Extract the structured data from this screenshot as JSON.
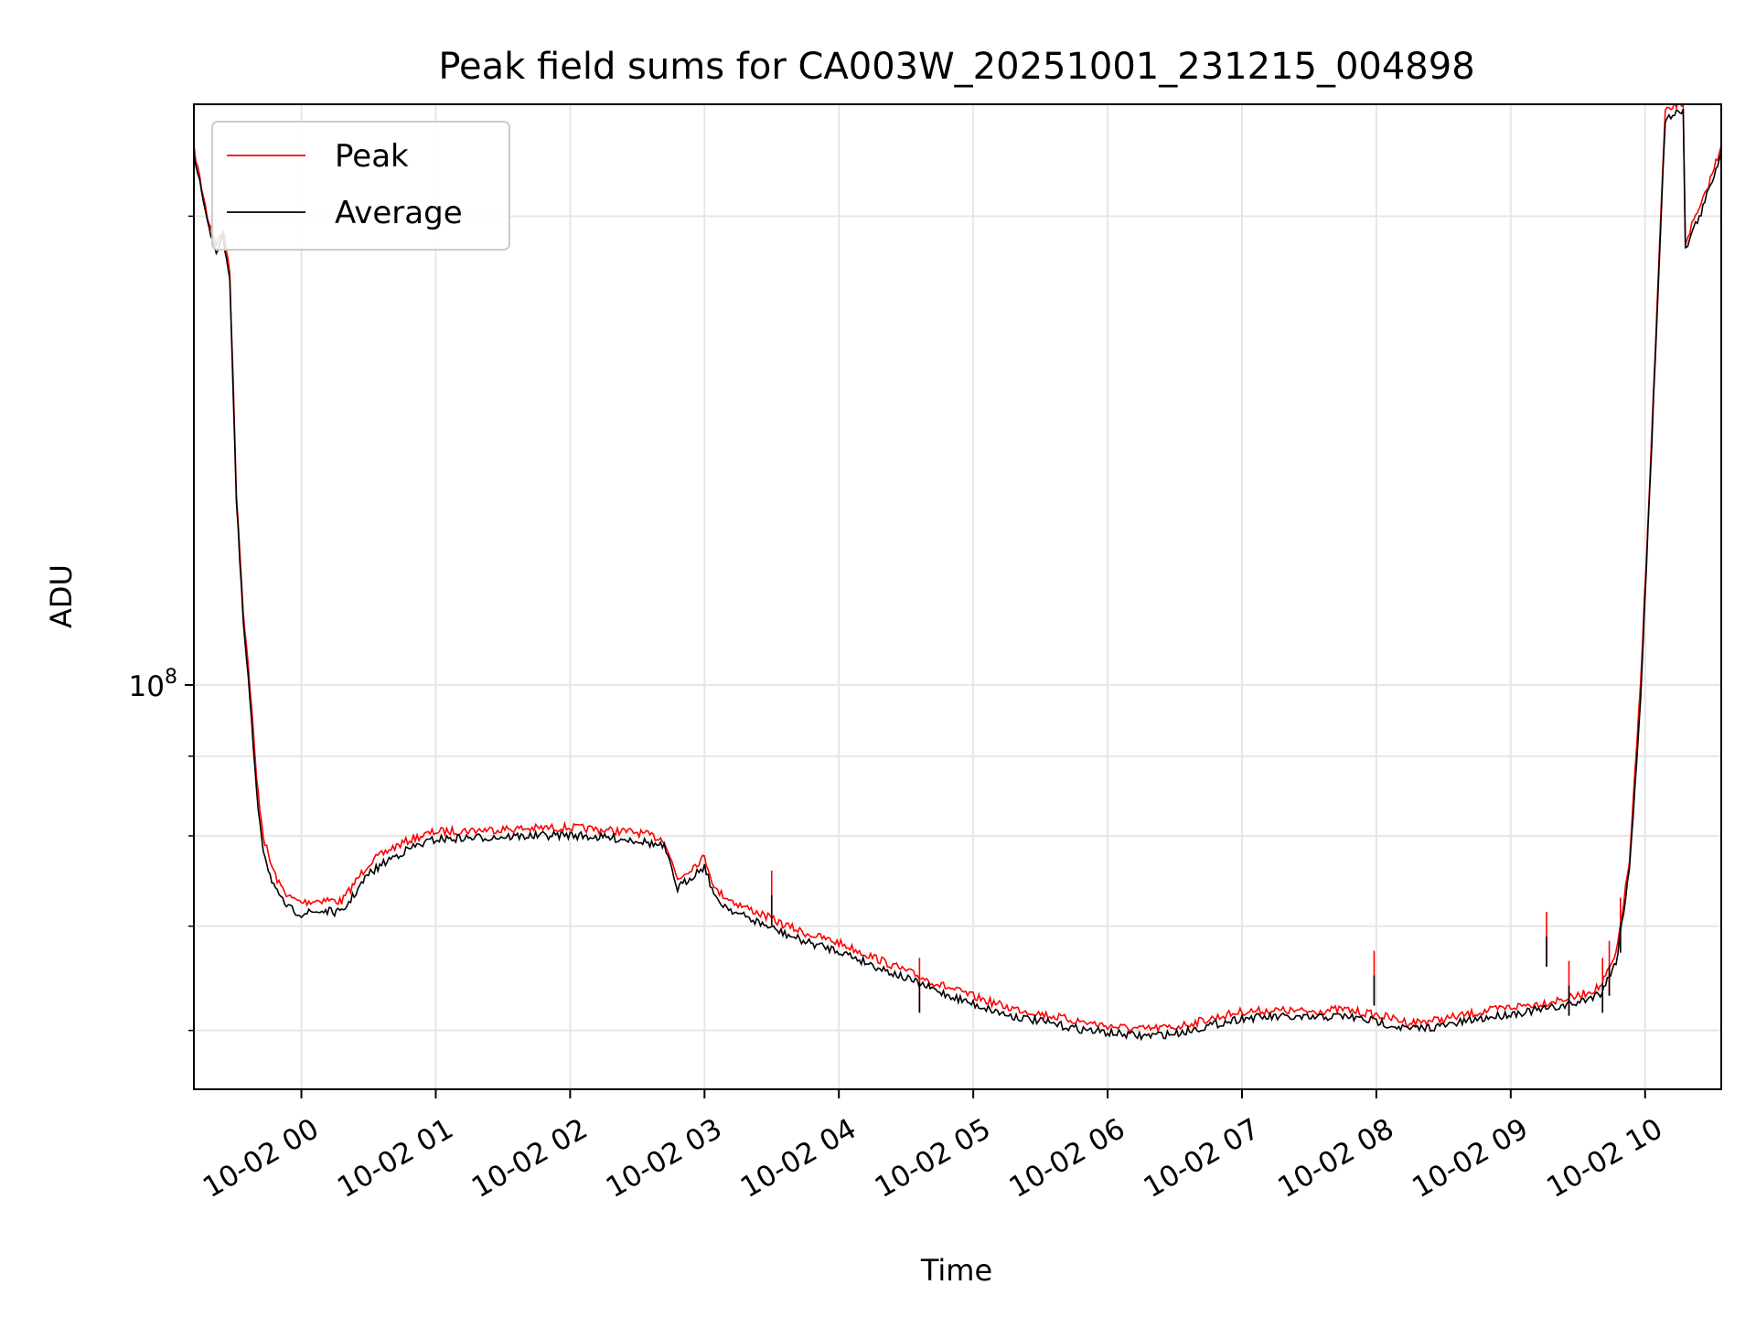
{
  "chart_data": {
    "type": "line",
    "title": "Peak field sums for CA003W_20251001_231215_004898",
    "xlabel": "Time",
    "ylabel": "ADU",
    "yscale": "log",
    "xlim": [
      "2025-10-01T23:12",
      "2025-10-02T10:34"
    ],
    "ylim": [
      55000000,
      236000000
    ],
    "x_ticks": [
      {
        "t": "2025-10-02T00:00",
        "label": "10-02 00"
      },
      {
        "t": "2025-10-02T01:00",
        "label": "10-02 01"
      },
      {
        "t": "2025-10-02T02:00",
        "label": "10-02 02"
      },
      {
        "t": "2025-10-02T03:00",
        "label": "10-02 03"
      },
      {
        "t": "2025-10-02T04:00",
        "label": "10-02 04"
      },
      {
        "t": "2025-10-02T05:00",
        "label": "10-02 05"
      },
      {
        "t": "2025-10-02T06:00",
        "label": "10-02 06"
      },
      {
        "t": "2025-10-02T07:00",
        "label": "10-02 07"
      },
      {
        "t": "2025-10-02T08:00",
        "label": "10-02 08"
      },
      {
        "t": "2025-10-02T09:00",
        "label": "10-02 09"
      },
      {
        "t": "2025-10-02T10:00",
        "label": "10-02 10"
      }
    ],
    "y_ticks": [
      {
        "value": 100000000,
        "base": "10",
        "exp": "8"
      }
    ],
    "y_minor_ticks": [
      60000000,
      70000000,
      80000000,
      90000000,
      200000000
    ],
    "grid": true,
    "legend_position": "top-left",
    "series": [
      {
        "name": "Peak",
        "color": "#ff0000",
        "points": [
          [
            "2025-10-01T23:12",
            221000000
          ],
          [
            "2025-10-01T23:18",
            200000000
          ],
          [
            "2025-10-01T23:22",
            192000000
          ],
          [
            "2025-10-01T23:25",
            196000000
          ],
          [
            "2025-10-01T23:28",
            185000000
          ],
          [
            "2025-10-01T23:31",
            133000000
          ],
          [
            "2025-10-01T23:34",
            112000000
          ],
          [
            "2025-10-01T23:37",
            100000000
          ],
          [
            "2025-10-01T23:40",
            87000000
          ],
          [
            "2025-10-01T23:43",
            80000000
          ],
          [
            "2025-10-01T23:46",
            77000000
          ],
          [
            "2025-10-01T23:50",
            74500000
          ],
          [
            "2025-10-01T23:55",
            73000000
          ],
          [
            "2025-10-02T00:00",
            72500000
          ],
          [
            "2025-10-02T00:10",
            72800000
          ],
          [
            "2025-10-02T00:18",
            72600000
          ],
          [
            "2025-10-02T00:22",
            74000000
          ],
          [
            "2025-10-02T00:30",
            76800000
          ],
          [
            "2025-10-02T00:40",
            78500000
          ],
          [
            "2025-10-02T00:50",
            79700000
          ],
          [
            "2025-10-02T01:00",
            80500000
          ],
          [
            "2025-10-02T01:30",
            80800000
          ],
          [
            "2025-10-02T02:00",
            81000000
          ],
          [
            "2025-10-02T02:30",
            80400000
          ],
          [
            "2025-10-02T02:42",
            79600000
          ],
          [
            "2025-10-02T02:48",
            75000000
          ],
          [
            "2025-10-02T02:55",
            76500000
          ],
          [
            "2025-10-02T03:00",
            77500000
          ],
          [
            "2025-10-02T03:05",
            73800000
          ],
          [
            "2025-10-02T03:15",
            72300000
          ],
          [
            "2025-10-02T03:25",
            71300000
          ],
          [
            "2025-10-02T03:35",
            70200000
          ],
          [
            "2025-10-02T03:45",
            69300000
          ],
          [
            "2025-10-02T04:00",
            68300000
          ],
          [
            "2025-10-02T04:15",
            66900000
          ],
          [
            "2025-10-02T04:30",
            65500000
          ],
          [
            "2025-10-02T04:45",
            64200000
          ],
          [
            "2025-10-02T05:00",
            63100000
          ],
          [
            "2025-10-02T05:15",
            62100000
          ],
          [
            "2025-10-02T05:30",
            61500000
          ],
          [
            "2025-10-02T05:45",
            60900000
          ],
          [
            "2025-10-02T06:00",
            60400000
          ],
          [
            "2025-10-02T06:15",
            60100000
          ],
          [
            "2025-10-02T06:30",
            60300000
          ],
          [
            "2025-10-02T06:45",
            61000000
          ],
          [
            "2025-10-02T07:00",
            61700000
          ],
          [
            "2025-10-02T07:15",
            61800000
          ],
          [
            "2025-10-02T07:30",
            61700000
          ],
          [
            "2025-10-02T07:45",
            61900000
          ],
          [
            "2025-10-02T08:00",
            61400000
          ],
          [
            "2025-10-02T08:15",
            60700000
          ],
          [
            "2025-10-02T08:30",
            61000000
          ],
          [
            "2025-10-02T08:45",
            61600000
          ],
          [
            "2025-10-02T09:00",
            62100000
          ],
          [
            "2025-10-02T09:15",
            62500000
          ],
          [
            "2025-10-02T09:30",
            63100000
          ],
          [
            "2025-10-02T09:40",
            64000000
          ],
          [
            "2025-10-02T09:47",
            67000000
          ],
          [
            "2025-10-02T09:53",
            77000000
          ],
          [
            "2025-10-02T09:58",
            100000000
          ],
          [
            "2025-10-02T10:03",
            145000000
          ],
          [
            "2025-10-02T10:07",
            200000000
          ],
          [
            "2025-10-02T10:09",
            233000000
          ],
          [
            "2025-10-02T10:14",
            236000000
          ],
          [
            "2025-10-02T10:17",
            236000000
          ],
          [
            "2025-10-02T10:18",
            192000000
          ],
          [
            "2025-10-02T10:20",
            196000000
          ],
          [
            "2025-10-02T10:25",
            203000000
          ],
          [
            "2025-10-02T10:30",
            213000000
          ],
          [
            "2025-10-02T10:34",
            222000000
          ]
        ]
      },
      {
        "name": "Average",
        "color": "#000000",
        "points": [
          [
            "2025-10-01T23:12",
            220000000
          ],
          [
            "2025-10-01T23:18",
            198000000
          ],
          [
            "2025-10-01T23:22",
            190000000
          ],
          [
            "2025-10-01T23:25",
            194000000
          ],
          [
            "2025-10-01T23:28",
            183000000
          ],
          [
            "2025-10-01T23:31",
            131000000
          ],
          [
            "2025-10-01T23:34",
            110000000
          ],
          [
            "2025-10-01T23:37",
            98000000
          ],
          [
            "2025-10-01T23:40",
            85000000
          ],
          [
            "2025-10-01T23:43",
            78500000
          ],
          [
            "2025-10-01T23:46",
            75500000
          ],
          [
            "2025-10-01T23:50",
            73000000
          ],
          [
            "2025-10-01T23:55",
            71800000
          ],
          [
            "2025-10-02T00:00",
            71300000
          ],
          [
            "2025-10-02T00:10",
            71600000
          ],
          [
            "2025-10-02T00:18",
            71400000
          ],
          [
            "2025-10-02T00:22",
            72800000
          ],
          [
            "2025-10-02T00:30",
            75600000
          ],
          [
            "2025-10-02T00:40",
            77400000
          ],
          [
            "2025-10-02T00:50",
            78700000
          ],
          [
            "2025-10-02T01:00",
            79600000
          ],
          [
            "2025-10-02T01:30",
            79900000
          ],
          [
            "2025-10-02T02:00",
            80100000
          ],
          [
            "2025-10-02T02:30",
            79500000
          ],
          [
            "2025-10-02T02:42",
            78700000
          ],
          [
            "2025-10-02T02:48",
            74000000
          ],
          [
            "2025-10-02T02:55",
            75500000
          ],
          [
            "2025-10-02T03:00",
            76500000
          ],
          [
            "2025-10-02T03:05",
            72800000
          ],
          [
            "2025-10-02T03:15",
            71300000
          ],
          [
            "2025-10-02T03:25",
            70300000
          ],
          [
            "2025-10-02T03:35",
            69300000
          ],
          [
            "2025-10-02T03:45",
            68400000
          ],
          [
            "2025-10-02T04:00",
            67500000
          ],
          [
            "2025-10-02T04:15",
            66100000
          ],
          [
            "2025-10-02T04:30",
            64800000
          ],
          [
            "2025-10-02T04:45",
            63500000
          ],
          [
            "2025-10-02T05:00",
            62400000
          ],
          [
            "2025-10-02T05:15",
            61400000
          ],
          [
            "2025-10-02T05:30",
            60800000
          ],
          [
            "2025-10-02T05:45",
            60200000
          ],
          [
            "2025-10-02T06:00",
            59800000
          ],
          [
            "2025-10-02T06:15",
            59500000
          ],
          [
            "2025-10-02T06:30",
            59700000
          ],
          [
            "2025-10-02T06:45",
            60400000
          ],
          [
            "2025-10-02T07:00",
            61100000
          ],
          [
            "2025-10-02T07:15",
            61200000
          ],
          [
            "2025-10-02T07:30",
            61100000
          ],
          [
            "2025-10-02T07:45",
            61300000
          ],
          [
            "2025-10-02T08:00",
            60800000
          ],
          [
            "2025-10-02T08:15",
            60100000
          ],
          [
            "2025-10-02T08:30",
            60400000
          ],
          [
            "2025-10-02T08:45",
            61000000
          ],
          [
            "2025-10-02T09:00",
            61500000
          ],
          [
            "2025-10-02T09:15",
            61900000
          ],
          [
            "2025-10-02T09:30",
            62500000
          ],
          [
            "2025-10-02T09:40",
            63400000
          ],
          [
            "2025-10-02T09:47",
            66300000
          ],
          [
            "2025-10-02T09:53",
            76000000
          ],
          [
            "2025-10-02T09:58",
            98000000
          ],
          [
            "2025-10-02T10:03",
            143000000
          ],
          [
            "2025-10-02T10:07",
            198000000
          ],
          [
            "2025-10-02T10:09",
            230000000
          ],
          [
            "2025-10-02T10:14",
            234000000
          ],
          [
            "2025-10-02T10:17",
            234000000
          ],
          [
            "2025-10-02T10:18",
            190000000
          ],
          [
            "2025-10-02T10:20",
            194000000
          ],
          [
            "2025-10-02T10:25",
            201000000
          ],
          [
            "2025-10-02T10:30",
            211000000
          ],
          [
            "2025-10-02T10:34",
            220000000
          ]
        ]
      }
    ],
    "spikes": [
      {
        "t": "2025-10-02T03:30",
        "value": 76000000
      },
      {
        "t": "2025-10-02T04:36",
        "value": 66800000
      },
      {
        "t": "2025-10-02T07:59",
        "value": 67500000
      },
      {
        "t": "2025-10-02T09:16",
        "value": 71500000
      },
      {
        "t": "2025-10-02T09:26",
        "value": 66500000
      },
      {
        "t": "2025-10-02T09:41",
        "value": 66800000
      },
      {
        "t": "2025-10-02T09:44",
        "value": 68500000
      },
      {
        "t": "2025-10-02T09:49",
        "value": 73000000
      }
    ]
  }
}
